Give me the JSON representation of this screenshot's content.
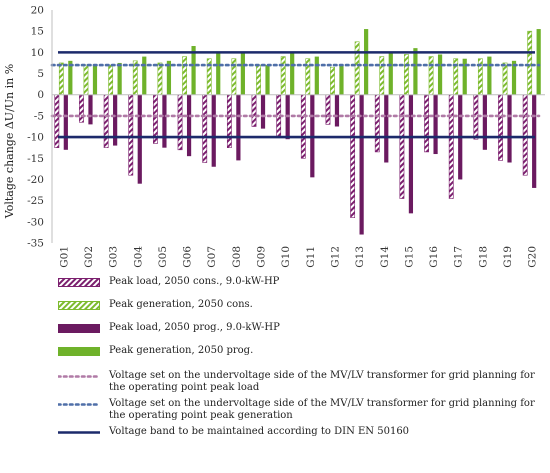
{
  "chart_data": {
    "type": "bar",
    "title": "",
    "xlabel": "",
    "ylabel": "Voltage change ΔU/Un in %",
    "ylim": [
      -35,
      20
    ],
    "yticks": [
      20,
      15,
      10,
      5,
      0,
      -5,
      -10,
      -15,
      -20,
      -25,
      -30,
      -35
    ],
    "categories": [
      "G01",
      "G02",
      "G03",
      "G04",
      "G05",
      "G06",
      "G07",
      "G08",
      "G09",
      "G10",
      "G11",
      "G12",
      "G13",
      "G14",
      "G15",
      "G16",
      "G17",
      "G18",
      "G19",
      "G20"
    ],
    "series": [
      {
        "name": "Peak load, 2050 cons., 9.0-kW-HP",
        "color": "#7b1f6e",
        "pattern": "hatch",
        "values": [
          -12.5,
          -6.5,
          -12.5,
          -19,
          -11.5,
          -13,
          -16,
          -12.5,
          -7.5,
          -10,
          -15,
          -7,
          -29,
          -13.5,
          -24.5,
          -13.5,
          -24.5,
          -10.5,
          -15.5,
          -19
        ]
      },
      {
        "name": "Peak generation, 2050 cons.",
        "color": "#7dbb2e",
        "pattern": "hatch",
        "values": [
          7.5,
          7,
          7,
          8,
          7.5,
          9,
          8.5,
          8.5,
          7,
          9,
          8.5,
          6.5,
          12.5,
          9,
          9.5,
          9,
          8.5,
          8.5,
          7.5,
          15
        ]
      },
      {
        "name": "Peak load, 2050 prog., 9.0-kW-HP",
        "color": "#6b1a60",
        "pattern": "solid",
        "values": [
          -13,
          -7,
          -12,
          -21,
          -12.5,
          -14.5,
          -17,
          -15.5,
          -8,
          -10.5,
          -19.5,
          -7.5,
          -33,
          -16,
          -28,
          -14,
          -20,
          -13,
          -16,
          -22
        ]
      },
      {
        "name": "Peak generation, 2050 prog.",
        "color": "#6fb22a",
        "pattern": "solid",
        "values": [
          8,
          7,
          7.5,
          9,
          8,
          11.5,
          10,
          10,
          7,
          10,
          9,
          7,
          15.5,
          10,
          11,
          9.5,
          8.5,
          9,
          8,
          15.5
        ]
      }
    ],
    "reference_lines": [
      {
        "name": "Voltage set on the undervoltage side of the MV/LV transformer for grid planning for the operating point peak load",
        "values": [
          -5
        ],
        "color": "#b07aa6",
        "style": "dotted"
      },
      {
        "name": "Voltage set on the undervoltage side of the MV/LV transformer for grid planning for the operating point peak generation",
        "values": [
          7
        ],
        "color": "#4f6fa8",
        "style": "dotted"
      },
      {
        "name": "Voltage band to be maintained according to DIN EN 50160",
        "values": [
          10,
          -10
        ],
        "color": "#1c2a6b",
        "style": "solid"
      }
    ],
    "grid": false,
    "legend_position": "bottom"
  }
}
